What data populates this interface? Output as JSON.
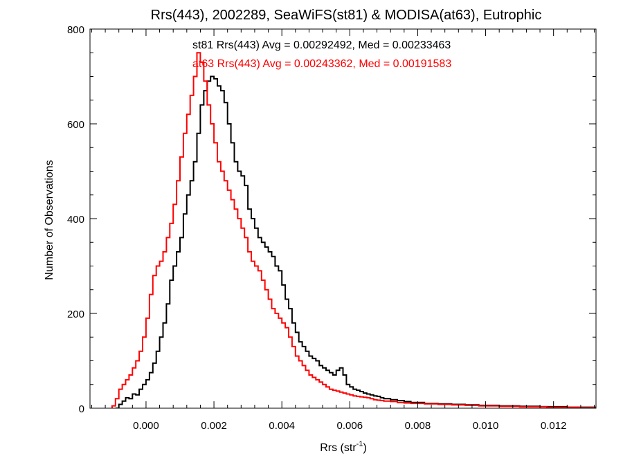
{
  "chart_data": {
    "type": "step-histogram",
    "title": "Rrs(443), 2002289, SeaWiFS(st81) & MODISA(at63), Eutrophic",
    "xlabel": "Rrs (str",
    "xlabel_superscript": "-1",
    "xlabel_suffix": ")",
    "ylabel": "Number of Observations",
    "xlim": [
      -0.00165,
      0.01325
    ],
    "ylim": [
      0,
      800
    ],
    "xticks": [
      0.0,
      0.002,
      0.004,
      0.006,
      0.008,
      0.01,
      0.012
    ],
    "xtick_labels": [
      "0.000",
      "0.002",
      "0.004",
      "0.006",
      "0.008",
      "0.010",
      "0.012"
    ],
    "yticks": [
      0,
      200,
      400,
      600,
      800
    ],
    "ytick_labels": [
      "0",
      "200",
      "400",
      "600",
      "800"
    ],
    "grid": false,
    "series": [
      {
        "id": "st81",
        "color": "#000000",
        "annotation": "st81 Rrs(443) Avg = 0.00292492, Med = 0.00233463",
        "points": [
          [
            -0.0009,
            0
          ],
          [
            -0.0008,
            8
          ],
          [
            -0.0007,
            15
          ],
          [
            -0.0006,
            22
          ],
          [
            -0.0005,
            20
          ],
          [
            -0.0004,
            30
          ],
          [
            -0.0003,
            28
          ],
          [
            -0.0002,
            40
          ],
          [
            -0.0001,
            50
          ],
          [
            0.0,
            60
          ],
          [
            0.0001,
            75
          ],
          [
            0.0002,
            95
          ],
          [
            0.0003,
            120
          ],
          [
            0.0004,
            150
          ],
          [
            0.0005,
            180
          ],
          [
            0.0006,
            220
          ],
          [
            0.0007,
            270
          ],
          [
            0.0008,
            300
          ],
          [
            0.0009,
            330
          ],
          [
            0.001,
            360
          ],
          [
            0.0011,
            410
          ],
          [
            0.0012,
            450
          ],
          [
            0.0013,
            480
          ],
          [
            0.0014,
            520
          ],
          [
            0.0015,
            580
          ],
          [
            0.0016,
            640
          ],
          [
            0.0017,
            670
          ],
          [
            0.0018,
            690
          ],
          [
            0.0019,
            700
          ],
          [
            0.002,
            695
          ],
          [
            0.0021,
            680
          ],
          [
            0.0022,
            670
          ],
          [
            0.0023,
            645
          ],
          [
            0.0024,
            600
          ],
          [
            0.0025,
            560
          ],
          [
            0.0026,
            520
          ],
          [
            0.0027,
            500
          ],
          [
            0.0028,
            490
          ],
          [
            0.0029,
            470
          ],
          [
            0.003,
            420
          ],
          [
            0.0031,
            400
          ],
          [
            0.0032,
            380
          ],
          [
            0.0033,
            360
          ],
          [
            0.0034,
            350
          ],
          [
            0.0035,
            340
          ],
          [
            0.0036,
            330
          ],
          [
            0.0037,
            320
          ],
          [
            0.0038,
            300
          ],
          [
            0.0039,
            290
          ],
          [
            0.004,
            260
          ],
          [
            0.0041,
            230
          ],
          [
            0.0042,
            210
          ],
          [
            0.0043,
            180
          ],
          [
            0.0044,
            160
          ],
          [
            0.0045,
            140
          ],
          [
            0.0046,
            130
          ],
          [
            0.0047,
            120
          ],
          [
            0.0048,
            110
          ],
          [
            0.0049,
            105
          ],
          [
            0.005,
            100
          ],
          [
            0.0051,
            90
          ],
          [
            0.0052,
            85
          ],
          [
            0.0053,
            80
          ],
          [
            0.0054,
            75
          ],
          [
            0.0055,
            70
          ],
          [
            0.0056,
            80
          ],
          [
            0.0057,
            85
          ],
          [
            0.0058,
            70
          ],
          [
            0.0059,
            50
          ],
          [
            0.006,
            45
          ],
          [
            0.0061,
            40
          ],
          [
            0.0062,
            38
          ],
          [
            0.0063,
            35
          ],
          [
            0.0064,
            32
          ],
          [
            0.0065,
            30
          ],
          [
            0.0066,
            28
          ],
          [
            0.0067,
            26
          ],
          [
            0.0068,
            25
          ],
          [
            0.0069,
            22
          ],
          [
            0.007,
            20
          ],
          [
            0.0072,
            18
          ],
          [
            0.0074,
            16
          ],
          [
            0.0076,
            14
          ],
          [
            0.0078,
            12
          ],
          [
            0.008,
            12
          ],
          [
            0.0082,
            10
          ],
          [
            0.0084,
            10
          ],
          [
            0.0086,
            9
          ],
          [
            0.0088,
            9
          ],
          [
            0.009,
            8
          ],
          [
            0.0092,
            8
          ],
          [
            0.0094,
            7
          ],
          [
            0.0096,
            7
          ],
          [
            0.0098,
            6
          ],
          [
            0.01,
            6
          ],
          [
            0.0102,
            6
          ],
          [
            0.0104,
            5
          ],
          [
            0.0106,
            5
          ],
          [
            0.0108,
            5
          ],
          [
            0.011,
            4
          ],
          [
            0.0112,
            4
          ],
          [
            0.0114,
            4
          ],
          [
            0.0116,
            3
          ],
          [
            0.0118,
            3
          ],
          [
            0.012,
            3
          ],
          [
            0.0122,
            3
          ],
          [
            0.0124,
            2
          ],
          [
            0.0126,
            2
          ],
          [
            0.0128,
            2
          ],
          [
            0.013,
            2
          ],
          [
            0.0132,
            2
          ]
        ]
      },
      {
        "id": "at63",
        "color": "#ff0000",
        "annotation": "at63 Rrs(443) Avg = 0.00243362, Med = 0.00191583",
        "points": [
          [
            -0.001,
            5
          ],
          [
            -0.0009,
            20
          ],
          [
            -0.0008,
            40
          ],
          [
            -0.0007,
            50
          ],
          [
            -0.0006,
            60
          ],
          [
            -0.0005,
            70
          ],
          [
            -0.0004,
            85
          ],
          [
            -0.0003,
            100
          ],
          [
            -0.0002,
            120
          ],
          [
            -0.0001,
            150
          ],
          [
            0.0,
            190
          ],
          [
            0.0001,
            240
          ],
          [
            0.0002,
            280
          ],
          [
            0.0003,
            300
          ],
          [
            0.0004,
            310
          ],
          [
            0.0005,
            330
          ],
          [
            0.0006,
            360
          ],
          [
            0.0007,
            390
          ],
          [
            0.0008,
            430
          ],
          [
            0.0009,
            480
          ],
          [
            0.001,
            530
          ],
          [
            0.0011,
            580
          ],
          [
            0.0012,
            620
          ],
          [
            0.0013,
            660
          ],
          [
            0.0014,
            700
          ],
          [
            0.0015,
            750
          ],
          [
            0.0016,
            730
          ],
          [
            0.0017,
            690
          ],
          [
            0.0018,
            640
          ],
          [
            0.0019,
            600
          ],
          [
            0.002,
            560
          ],
          [
            0.0021,
            520
          ],
          [
            0.0022,
            500
          ],
          [
            0.0023,
            480
          ],
          [
            0.0024,
            460
          ],
          [
            0.0025,
            440
          ],
          [
            0.0026,
            420
          ],
          [
            0.0027,
            400
          ],
          [
            0.0028,
            380
          ],
          [
            0.0029,
            360
          ],
          [
            0.003,
            330
          ],
          [
            0.0031,
            310
          ],
          [
            0.0032,
            300
          ],
          [
            0.0033,
            290
          ],
          [
            0.0034,
            270
          ],
          [
            0.0035,
            250
          ],
          [
            0.0036,
            230
          ],
          [
            0.0037,
            210
          ],
          [
            0.0038,
            200
          ],
          [
            0.0039,
            190
          ],
          [
            0.004,
            180
          ],
          [
            0.0041,
            170
          ],
          [
            0.0042,
            150
          ],
          [
            0.0043,
            130
          ],
          [
            0.0044,
            110
          ],
          [
            0.0045,
            100
          ],
          [
            0.0046,
            90
          ],
          [
            0.0047,
            80
          ],
          [
            0.0048,
            70
          ],
          [
            0.0049,
            65
          ],
          [
            0.005,
            60
          ],
          [
            0.0051,
            55
          ],
          [
            0.0052,
            50
          ],
          [
            0.0053,
            45
          ],
          [
            0.0054,
            40
          ],
          [
            0.0055,
            38
          ],
          [
            0.0056,
            36
          ],
          [
            0.0057,
            34
          ],
          [
            0.0058,
            32
          ],
          [
            0.0059,
            30
          ],
          [
            0.006,
            28
          ],
          [
            0.0061,
            26
          ],
          [
            0.0062,
            25
          ],
          [
            0.0063,
            24
          ],
          [
            0.0064,
            23
          ],
          [
            0.0065,
            22
          ],
          [
            0.0066,
            20
          ],
          [
            0.0067,
            18
          ],
          [
            0.0068,
            17
          ],
          [
            0.0069,
            16
          ],
          [
            0.007,
            15
          ],
          [
            0.0072,
            14
          ],
          [
            0.0074,
            12
          ],
          [
            0.0076,
            11
          ],
          [
            0.0078,
            10
          ],
          [
            0.008,
            10
          ],
          [
            0.0082,
            9
          ],
          [
            0.0084,
            9
          ],
          [
            0.0086,
            8
          ],
          [
            0.0088,
            8
          ],
          [
            0.009,
            7
          ],
          [
            0.0092,
            7
          ],
          [
            0.0094,
            6
          ],
          [
            0.0096,
            6
          ],
          [
            0.0098,
            5
          ],
          [
            0.01,
            5
          ],
          [
            0.0102,
            5
          ],
          [
            0.0104,
            4
          ],
          [
            0.0106,
            4
          ],
          [
            0.0108,
            4
          ],
          [
            0.011,
            3
          ],
          [
            0.0112,
            3
          ],
          [
            0.0114,
            3
          ],
          [
            0.0116,
            3
          ],
          [
            0.0118,
            2
          ],
          [
            0.012,
            2
          ],
          [
            0.0122,
            2
          ],
          [
            0.0124,
            2
          ],
          [
            0.0126,
            2
          ],
          [
            0.0128,
            1
          ],
          [
            0.013,
            1
          ],
          [
            0.0132,
            1
          ]
        ]
      }
    ]
  }
}
